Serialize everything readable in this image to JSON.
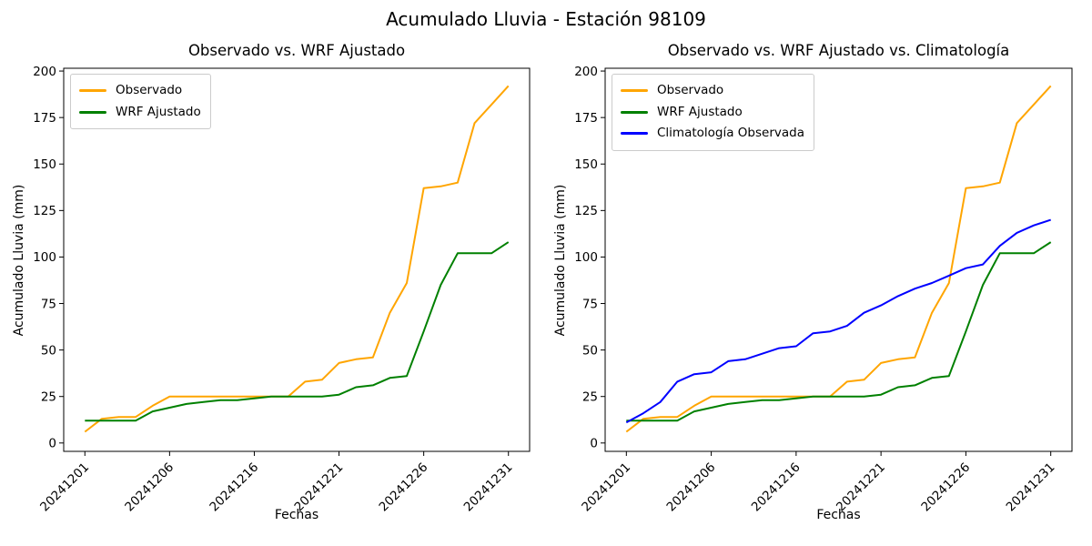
{
  "figure": {
    "title": "Acumulado Lluvia - Estación 98109",
    "background_color": "#ffffff",
    "text_color": "#000000",
    "spine_color": "#000000"
  },
  "chart_data": [
    {
      "type": "line",
      "title": "Observado vs. WRF Ajustado",
      "xlabel": "Fechas",
      "ylabel": "Acumulado Lluvia (mm)",
      "x_categories": [
        "20241201",
        "20241202",
        "20241203",
        "20241204",
        "20241205",
        "20241206",
        "20241207",
        "20241208",
        "20241209",
        "20241210",
        "20241216",
        "20241217",
        "20241218",
        "20241219",
        "20241220",
        "20241221",
        "20241222",
        "20241223",
        "20241224",
        "20241225",
        "20241226",
        "20241227",
        "20241228",
        "20241229",
        "20241230",
        "20241231"
      ],
      "xtick_indices": [
        0,
        5,
        10,
        15,
        20,
        25
      ],
      "xtick_labels": [
        "20241201",
        "20241206",
        "20241216",
        "20241221",
        "20241226",
        "20241231"
      ],
      "yticks": [
        0,
        25,
        50,
        75,
        100,
        125,
        150,
        175,
        200
      ],
      "xlim": [
        -1.25,
        26.25
      ],
      "ylim": [
        -4.5,
        201.5
      ],
      "grid": false,
      "legend_position": "upper left",
      "series": [
        {
          "name": "Observado",
          "color": "#ffa500",
          "values": [
            6,
            13,
            14,
            14,
            20,
            25,
            25,
            25,
            25,
            25,
            25,
            25,
            25,
            33,
            34,
            43,
            45,
            46,
            70,
            86,
            137,
            138,
            140,
            172,
            182,
            192
          ]
        },
        {
          "name": "WRF Ajustado",
          "color": "#008000",
          "values": [
            12,
            12,
            12,
            12,
            17,
            19,
            21,
            22,
            23,
            23,
            24,
            25,
            25,
            25,
            25,
            26,
            30,
            31,
            35,
            36,
            60,
            85,
            102,
            102,
            102,
            108
          ]
        }
      ]
    },
    {
      "type": "line",
      "title": "Observado vs. WRF Ajustado vs. Climatología",
      "xlabel": "Fechas",
      "ylabel": "Acumulado Lluvia (mm)",
      "x_categories": [
        "20241201",
        "20241202",
        "20241203",
        "20241204",
        "20241205",
        "20241206",
        "20241207",
        "20241208",
        "20241209",
        "20241210",
        "20241216",
        "20241217",
        "20241218",
        "20241219",
        "20241220",
        "20241221",
        "20241222",
        "20241223",
        "20241224",
        "20241225",
        "20241226",
        "20241227",
        "20241228",
        "20241229",
        "20241230",
        "20241231"
      ],
      "xtick_indices": [
        0,
        5,
        10,
        15,
        20,
        25
      ],
      "xtick_labels": [
        "20241201",
        "20241206",
        "20241216",
        "20241221",
        "20241226",
        "20241231"
      ],
      "yticks": [
        0,
        25,
        50,
        75,
        100,
        125,
        150,
        175,
        200
      ],
      "xlim": [
        -1.25,
        26.25
      ],
      "ylim": [
        -4.5,
        201.5
      ],
      "grid": false,
      "legend_position": "upper left",
      "series": [
        {
          "name": "Observado",
          "color": "#ffa500",
          "values": [
            6,
            13,
            14,
            14,
            20,
            25,
            25,
            25,
            25,
            25,
            25,
            25,
            25,
            33,
            34,
            43,
            45,
            46,
            70,
            86,
            137,
            138,
            140,
            172,
            182,
            192
          ]
        },
        {
          "name": "WRF Ajustado",
          "color": "#008000",
          "values": [
            12,
            12,
            12,
            12,
            17,
            19,
            21,
            22,
            23,
            23,
            24,
            25,
            25,
            25,
            25,
            26,
            30,
            31,
            35,
            36,
            60,
            85,
            102,
            102,
            102,
            108
          ]
        },
        {
          "name": "Climatología Observada",
          "color": "#0000ff",
          "values": [
            11,
            16,
            22,
            33,
            37,
            38,
            44,
            45,
            48,
            51,
            52,
            59,
            60,
            63,
            70,
            74,
            79,
            83,
            86,
            90,
            94,
            96,
            106,
            113,
            117,
            120
          ]
        }
      ]
    }
  ]
}
